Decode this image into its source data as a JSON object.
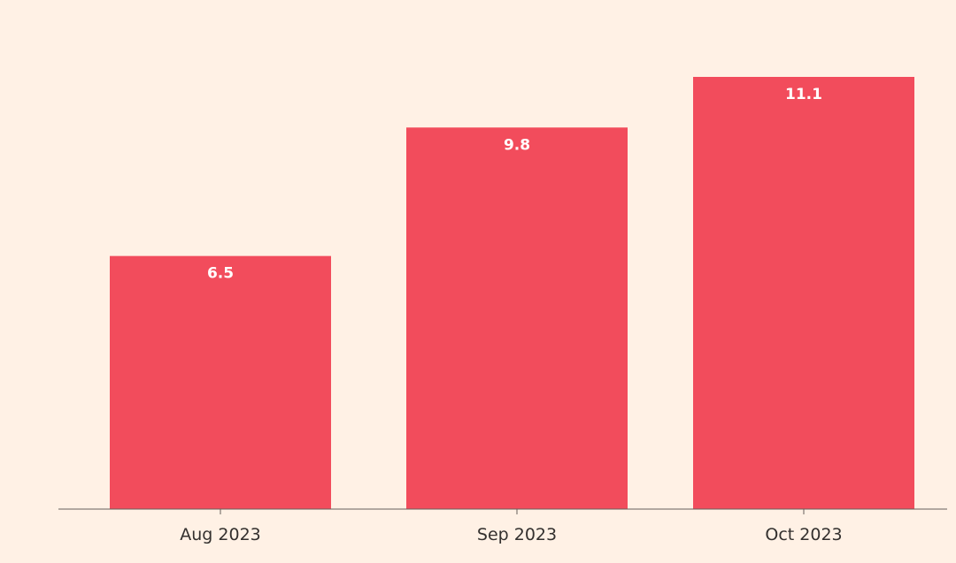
{
  "colors": {
    "background": "#FFF1E5",
    "bar": "#F24C5C",
    "axis": "#66605C",
    "bar_label": "#FFFFFF",
    "tick_label": "#33302E"
  },
  "chart_data": {
    "type": "bar",
    "title": "",
    "xlabel": "",
    "ylabel": "",
    "categories": [
      "Aug 2023",
      "Sep 2023",
      "Oct 2023"
    ],
    "values": [
      6.5,
      9.8,
      11.1
    ],
    "data_labels": [
      "6.5",
      "9.8",
      "11.1"
    ],
    "ylim": [
      0,
      11.1
    ],
    "grid": false,
    "legend": "none"
  }
}
